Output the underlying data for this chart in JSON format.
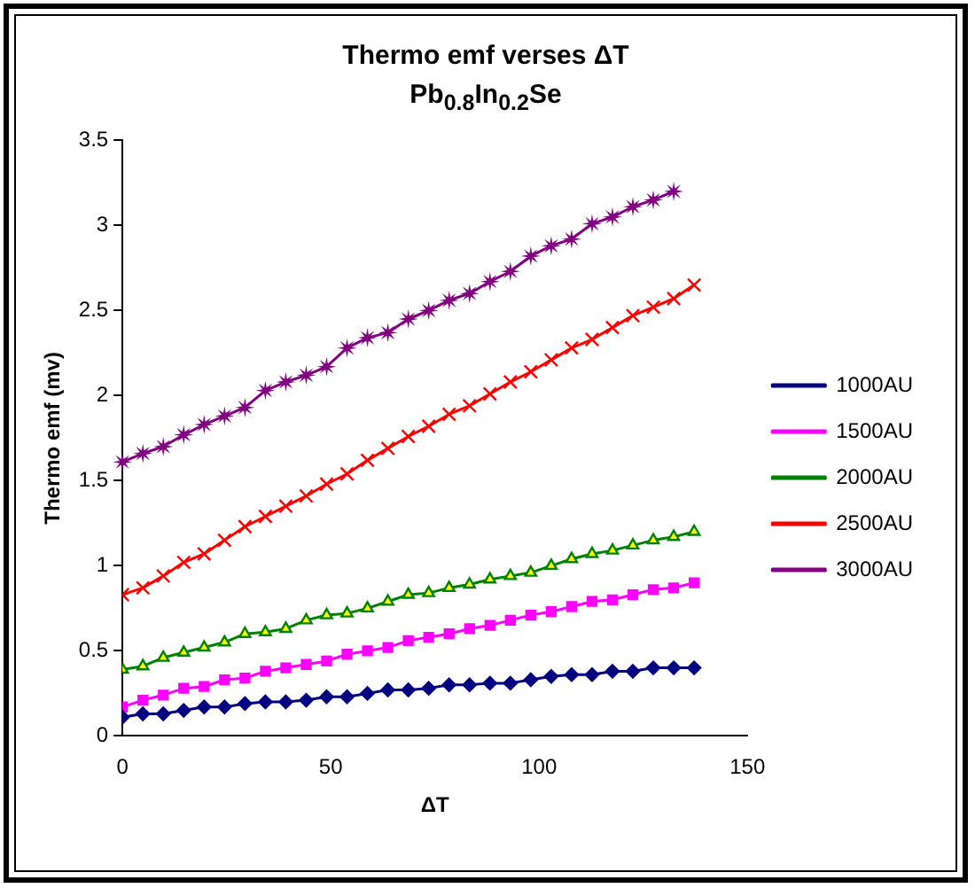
{
  "chart_data": {
    "type": "line",
    "title": "Thermo emf verses ΔT",
    "subtitle": "Pb$_{0.8}$In$_{0.2}$Se",
    "xlabel": "ΔT",
    "ylabel": "Thermo emf (mv)",
    "x": [
      0,
      4.9,
      9.8,
      14.7,
      19.6,
      24.5,
      29.4,
      34.3,
      39.2,
      44.1,
      49,
      53.9,
      58.8,
      63.7,
      68.6,
      73.5,
      78.4,
      83.3,
      88.2,
      93.1,
      98,
      102.9,
      107.8,
      112.7,
      117.6,
      122.5,
      127.4,
      132.3,
      137.2
    ],
    "xlim": [
      0,
      150
    ],
    "xticks": [
      0,
      50,
      100,
      150
    ],
    "ylim": [
      0,
      3.5
    ],
    "yticks": [
      0,
      0.5,
      1,
      1.5,
      2,
      2.5,
      3,
      3.5
    ],
    "grid": false,
    "legend": "right",
    "line_style": "solid",
    "series": [
      {
        "name": "1000AU",
        "color": "#000080",
        "marker": "diamond",
        "values": [
          0.11,
          0.13,
          0.13,
          0.15,
          0.17,
          0.17,
          0.19,
          0.2,
          0.2,
          0.21,
          0.23,
          0.23,
          0.25,
          0.27,
          0.27,
          0.28,
          0.3,
          0.3,
          0.31,
          0.31,
          0.33,
          0.35,
          0.36,
          0.36,
          0.38,
          0.38,
          0.4,
          0.4,
          0.4
        ]
      },
      {
        "name": "1500AU",
        "color": "#ff00ff",
        "marker": "square",
        "values": [
          0.17,
          0.21,
          0.24,
          0.28,
          0.29,
          0.33,
          0.34,
          0.38,
          0.4,
          0.42,
          0.44,
          0.48,
          0.5,
          0.52,
          0.56,
          0.58,
          0.6,
          0.63,
          0.65,
          0.68,
          0.71,
          0.73,
          0.76,
          0.79,
          0.8,
          0.83,
          0.86,
          0.87,
          0.9
        ]
      },
      {
        "name": "2000AU",
        "color": "#008000",
        "marker": "triangle",
        "values": [
          0.39,
          0.41,
          0.46,
          0.49,
          0.52,
          0.55,
          0.6,
          0.61,
          0.63,
          0.68,
          0.71,
          0.72,
          0.75,
          0.79,
          0.83,
          0.84,
          0.87,
          0.89,
          0.92,
          0.94,
          0.96,
          1.0,
          1.04,
          1.07,
          1.09,
          1.12,
          1.15,
          1.17,
          1.2
        ]
      },
      {
        "name": "2500AU",
        "color": "#ff0000",
        "marker": "cross",
        "values": [
          0.83,
          0.87,
          0.94,
          1.02,
          1.07,
          1.15,
          1.23,
          1.29,
          1.35,
          1.41,
          1.48,
          1.54,
          1.62,
          1.69,
          1.76,
          1.82,
          1.89,
          1.94,
          2.01,
          2.08,
          2.14,
          2.21,
          2.28,
          2.33,
          2.4,
          2.47,
          2.52,
          2.57,
          2.65
        ]
      },
      {
        "name": "3000AU",
        "color": "#800080",
        "marker": "star",
        "values": [
          1.61,
          1.66,
          1.7,
          1.77,
          1.83,
          1.88,
          1.93,
          2.03,
          2.08,
          2.12,
          2.17,
          2.28,
          2.34,
          2.37,
          2.45,
          2.5,
          2.56,
          2.6,
          2.67,
          2.73,
          2.82,
          2.88,
          2.92,
          3.01,
          3.05,
          3.11,
          3.15,
          3.2,
          null
        ]
      }
    ]
  }
}
